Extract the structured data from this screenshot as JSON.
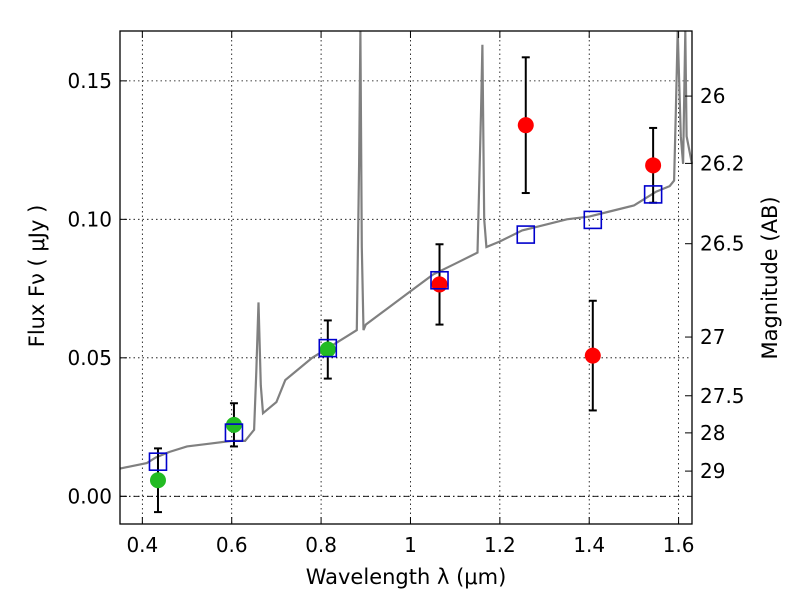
{
  "chart_data": {
    "type": "scatter",
    "title": "",
    "xlabel": "Wavelength  λ (μm)",
    "ylabel": "Flux  Fν  ( μJy )",
    "y2label": "Magnitude (AB)",
    "xlim": [
      0.35,
      1.63
    ],
    "ylim": [
      -0.01,
      0.168
    ],
    "grid": true,
    "x_ticks": [
      0.4,
      0.6,
      0.8,
      1.0,
      1.2,
      1.4,
      1.6
    ],
    "x_tick_labels": [
      "0.4",
      "0.6",
      "0.8",
      "1",
      "1.2",
      "1.4",
      "1.6"
    ],
    "y_ticks": [
      0.0,
      0.05,
      0.1,
      0.15
    ],
    "y_tick_labels": [
      "0.00",
      "0.05",
      "0.10",
      "0.15"
    ],
    "y2_ticks": [
      {
        "label": "26",
        "flux": 0.1445
      },
      {
        "label": "26.2",
        "flux": 0.1202
      },
      {
        "label": "26.5",
        "flux": 0.0912
      },
      {
        "label": "27",
        "flux": 0.0575
      },
      {
        "label": "27.5",
        "flux": 0.0363
      },
      {
        "label": "28",
        "flux": 0.0229
      },
      {
        "label": "29",
        "flux": 0.0091
      }
    ],
    "series": [
      {
        "marker": "circle",
        "color": "#22bb22",
        "x": [
          0.435,
          0.605,
          0.815
        ],
        "y": [
          0.0058,
          0.0258,
          0.053
        ],
        "yerr": [
          0.0115,
          0.0078,
          0.0105
        ]
      },
      {
        "marker": "circle",
        "color": "#ff0000",
        "x": [
          1.065,
          1.258,
          1.408,
          1.543
        ],
        "y": [
          0.0765,
          0.134,
          0.0508,
          0.1195
        ],
        "yerr": [
          0.0145,
          0.0245,
          0.0198,
          0.0135
        ]
      },
      {
        "marker": "square-open",
        "color": "#0000cc",
        "x": [
          0.435,
          0.605,
          0.815,
          1.065,
          1.258,
          1.408,
          1.543
        ],
        "y": [
          0.0125,
          0.023,
          0.0535,
          0.078,
          0.0945,
          0.0998,
          0.109
        ]
      }
    ],
    "spectrum": {
      "color": "#808080",
      "x": [
        0.35,
        0.38,
        0.41,
        0.43,
        0.46,
        0.5,
        0.55,
        0.6,
        0.63,
        0.65,
        0.655,
        0.66,
        0.665,
        0.67,
        0.7,
        0.72,
        0.75,
        0.78,
        0.8,
        0.82,
        0.84,
        0.86,
        0.88,
        0.885,
        0.888,
        0.891,
        0.895,
        0.9,
        0.95,
        1.0,
        1.05,
        1.1,
        1.15,
        1.158,
        1.161,
        1.165,
        1.17,
        1.2,
        1.25,
        1.3,
        1.35,
        1.4,
        1.45,
        1.5,
        1.55,
        1.58,
        1.59,
        1.594,
        1.598,
        1.605,
        1.61,
        1.615,
        1.618,
        1.63
      ],
      "y": [
        0.01,
        0.011,
        0.012,
        0.014,
        0.016,
        0.018,
        0.019,
        0.02,
        0.02,
        0.024,
        0.045,
        0.07,
        0.04,
        0.03,
        0.034,
        0.042,
        0.046,
        0.05,
        0.052,
        0.054,
        0.056,
        0.058,
        0.06,
        0.12,
        0.168,
        0.09,
        0.06,
        0.062,
        0.068,
        0.074,
        0.08,
        0.084,
        0.088,
        0.14,
        0.163,
        0.1,
        0.09,
        0.092,
        0.096,
        0.098,
        0.1,
        0.101,
        0.103,
        0.105,
        0.11,
        0.112,
        0.114,
        0.14,
        0.168,
        0.13,
        0.12,
        0.168,
        0.13,
        0.12
      ]
    },
    "reference_line_y": 0.0
  }
}
